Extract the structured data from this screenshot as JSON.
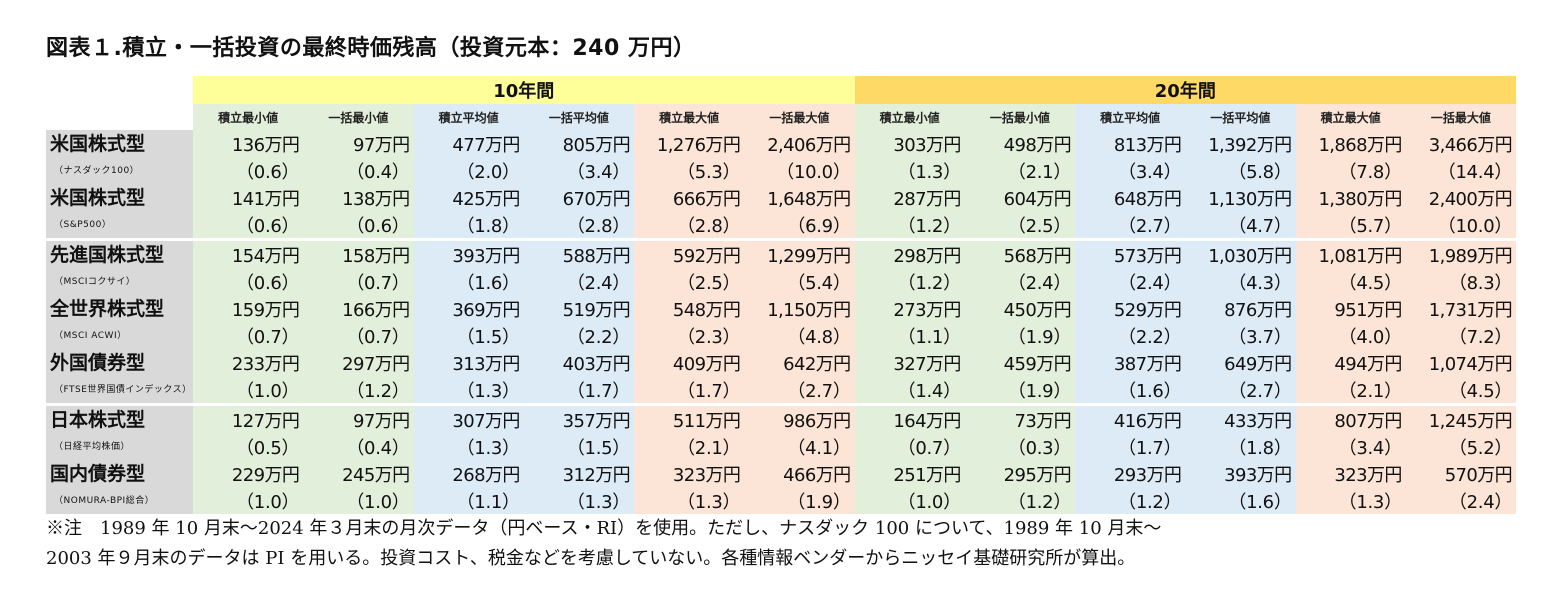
{
  "title": "図表１.積立・一括投資の最終時価残高（投資元本：240 万円）",
  "chart_data": {
    "type": "table",
    "title": "図表１.積立・一括投資の最終時価残高（投資元本：240 万円）",
    "periods": [
      "10年間",
      "20年間"
    ],
    "columns": [
      "積立最小値",
      "一括最小値",
      "積立平均値",
      "一括平均値",
      "積立最大値",
      "一括最大値"
    ],
    "rows": [
      {
        "name": "米国株式型",
        "sub": "（ナスダック100）",
        "values": [
          "136万円",
          "97万円",
          "477万円",
          "805万円",
          "1,276万円",
          "2,406万円",
          "303万円",
          "498万円",
          "813万円",
          "1,392万円",
          "1,868万円",
          "3,466万円"
        ],
        "multiples": [
          "（0.6）",
          "（0.4）",
          "（2.0）",
          "（3.4）",
          "（5.3）",
          "（10.0）",
          "（1.3）",
          "（2.1）",
          "（3.4）",
          "（5.8）",
          "（7.8）",
          "（14.4）"
        ]
      },
      {
        "name": "米国株式型",
        "sub": "（S&P500）",
        "values": [
          "141万円",
          "138万円",
          "425万円",
          "670万円",
          "666万円",
          "1,648万円",
          "287万円",
          "604万円",
          "648万円",
          "1,130万円",
          "1,380万円",
          "2,400万円"
        ],
        "multiples": [
          "（0.6）",
          "（0.6）",
          "（1.8）",
          "（2.8）",
          "（2.8）",
          "（6.9）",
          "（1.2）",
          "（2.5）",
          "（2.7）",
          "（4.7）",
          "（5.7）",
          "（10.0）"
        ]
      },
      {
        "name": "先進国株式型",
        "sub": "（MSCIコクサイ）",
        "values": [
          "154万円",
          "158万円",
          "393万円",
          "588万円",
          "592万円",
          "1,299万円",
          "298万円",
          "568万円",
          "573万円",
          "1,030万円",
          "1,081万円",
          "1,989万円"
        ],
        "multiples": [
          "（0.6）",
          "（0.7）",
          "（1.6）",
          "（2.4）",
          "（2.5）",
          "（5.4）",
          "（1.2）",
          "（2.4）",
          "（2.4）",
          "（4.3）",
          "（4.5）",
          "（8.3）"
        ]
      },
      {
        "name": "全世界株式型",
        "sub": "（MSCI ACWI）",
        "values": [
          "159万円",
          "166万円",
          "369万円",
          "519万円",
          "548万円",
          "1,150万円",
          "273万円",
          "450万円",
          "529万円",
          "876万円",
          "951万円",
          "1,731万円"
        ],
        "multiples": [
          "（0.7）",
          "（0.7）",
          "（1.5）",
          "（2.2）",
          "（2.3）",
          "（4.8）",
          "（1.1）",
          "（1.9）",
          "（2.2）",
          "（3.7）",
          "（4.0）",
          "（7.2）"
        ]
      },
      {
        "name": "外国債券型",
        "sub": "（FTSE世界国債インデックス）",
        "values": [
          "233万円",
          "297万円",
          "313万円",
          "403万円",
          "409万円",
          "642万円",
          "327万円",
          "459万円",
          "387万円",
          "649万円",
          "494万円",
          "1,074万円"
        ],
        "multiples": [
          "（1.0）",
          "（1.2）",
          "（1.3）",
          "（1.7）",
          "（1.7）",
          "（2.7）",
          "（1.4）",
          "（1.9）",
          "（1.6）",
          "（2.7）",
          "（2.1）",
          "（4.5）"
        ]
      },
      {
        "name": "日本株式型",
        "sub": "（日経平均株価）",
        "values": [
          "127万円",
          "97万円",
          "307万円",
          "357万円",
          "511万円",
          "986万円",
          "164万円",
          "73万円",
          "416万円",
          "433万円",
          "807万円",
          "1,245万円"
        ],
        "multiples": [
          "（0.5）",
          "（0.4）",
          "（1.3）",
          "（1.5）",
          "（2.1）",
          "（4.1）",
          "（0.7）",
          "（0.3）",
          "（1.7）",
          "（1.8）",
          "（3.4）",
          "（5.2）"
        ]
      },
      {
        "name": "国内債券型",
        "sub": "（NOMURA-BPI総合）",
        "values": [
          "229万円",
          "245万円",
          "268万円",
          "312万円",
          "323万円",
          "466万円",
          "251万円",
          "295万円",
          "293万円",
          "393万円",
          "323万円",
          "570万円"
        ],
        "multiples": [
          "（1.0）",
          "（1.0）",
          "（1.1）",
          "（1.3）",
          "（1.3）",
          "（1.9）",
          "（1.0）",
          "（1.2）",
          "（1.2）",
          "（1.6）",
          "（1.3）",
          "（2.4）"
        ]
      }
    ],
    "colors": {
      "period10": "#ffff99",
      "period20": "#ffd966",
      "min": "#e2efda",
      "avg": "#ddebf7",
      "max": "#fce4d6",
      "label": "#d9d9d9"
    }
  },
  "note": {
    "line1": "※注　1989 年 10 月末～2024 年３月末の月次データ（円ベース・RI）を使用。ただし、ナスダック 100 について、1989 年 10 月末～",
    "line2": "2003 年９月末のデータは PI を用いる。投資コスト、税金などを考慮していない。各種情報ベンダーからニッセイ基礎研究所が算出。"
  }
}
